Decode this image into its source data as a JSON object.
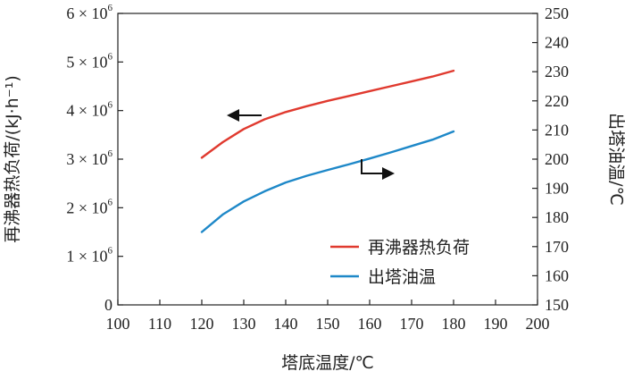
{
  "chart_data": {
    "type": "line",
    "xlabel": "塔底温度/℃",
    "ylabel_left": "再沸器热负荷/(kJ·h⁻¹)",
    "ylabel_right": "出塔油温/℃",
    "xlim": [
      100,
      200
    ],
    "x_ticks": [
      "100",
      "110",
      "120",
      "130",
      "140",
      "150",
      "160",
      "170",
      "180",
      "190",
      "200"
    ],
    "ylim_left": [
      0,
      6000000
    ],
    "y_ticks_left": [
      {
        "value": 0,
        "mant": "0",
        "exp": ""
      },
      {
        "value": 1000000,
        "mant": "1 × 10",
        "exp": "6"
      },
      {
        "value": 2000000,
        "mant": "2 × 10",
        "exp": "6"
      },
      {
        "value": 3000000,
        "mant": "3 × 10",
        "exp": "6"
      },
      {
        "value": 4000000,
        "mant": "4 × 10",
        "exp": "6"
      },
      {
        "value": 5000000,
        "mant": "5 × 10",
        "exp": "6"
      },
      {
        "value": 6000000,
        "mant": "6 × 10",
        "exp": "6"
      }
    ],
    "ylim_right": [
      150,
      250
    ],
    "y_ticks_right": [
      "150",
      "160",
      "170",
      "180",
      "190",
      "200",
      "210",
      "220",
      "230",
      "240",
      "250"
    ],
    "legend_position": "lower-right",
    "series": [
      {
        "name": "再沸器热负荷",
        "axis": "left",
        "color": "#e03a2f",
        "x": [
          120,
          125,
          130,
          135,
          140,
          145,
          150,
          155,
          160,
          165,
          170,
          175,
          180
        ],
        "y": [
          3030000,
          3350000,
          3620000,
          3820000,
          3970000,
          4090000,
          4200000,
          4300000,
          4400000,
          4500000,
          4600000,
          4700000,
          4820000
        ]
      },
      {
        "name": "出塔油温",
        "axis": "right",
        "color": "#1e88c8",
        "x": [
          120,
          125,
          130,
          135,
          140,
          145,
          150,
          155,
          160,
          165,
          170,
          175,
          180
        ],
        "y": [
          175,
          181,
          185.5,
          189,
          192,
          194.3,
          196.3,
          198.2,
          200.2,
          202.3,
          204.5,
          206.7,
          209.5
        ]
      }
    ]
  }
}
